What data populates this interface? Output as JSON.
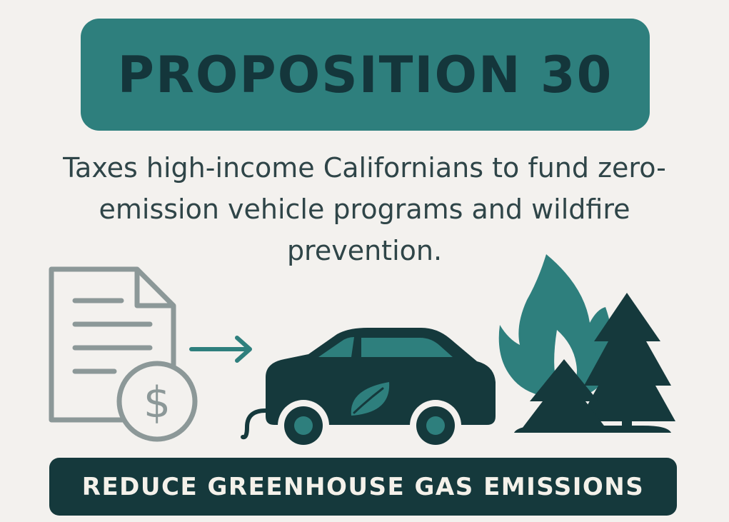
{
  "title": "PROPOSITION 30",
  "description": "Taxes high-income Californians to fund zero-emission vehicle programs and wildfire prevention.",
  "footer": "REDUCE GREENHOUSE GAS EMISSIONS",
  "icons": {
    "document": "tax-document-icon",
    "dollar": "dollar-coin-icon",
    "arrow": "arrow-right-icon",
    "car": "electric-car-icon",
    "leaf": "leaf-icon",
    "fire": "flame-icon",
    "trees": "pine-trees-icon"
  },
  "colors": {
    "background": "#f3f1ee",
    "teal": "#2e7f7d",
    "dark_teal": "#15393c",
    "gray": "#8c9898",
    "text": "#2f4548"
  }
}
